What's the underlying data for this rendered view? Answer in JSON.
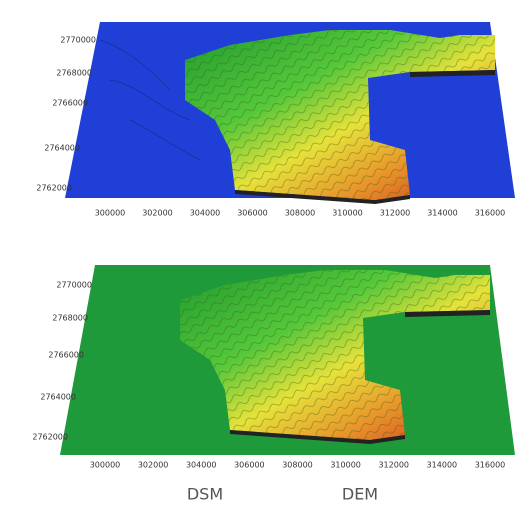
{
  "panels": [
    {
      "y_labels": [
        "2770000",
        "2768000",
        "2766000",
        "2764000",
        "2762000"
      ],
      "x_labels": [
        "300000",
        "302000",
        "304000",
        "306000",
        "308000",
        "310000",
        "312000",
        "314000",
        "316000"
      ]
    },
    {
      "y_labels": [
        "2770000",
        "2768000",
        "2766000",
        "2764000",
        "2762000"
      ],
      "x_labels": [
        "300000",
        "302000",
        "304000",
        "306000",
        "308000",
        "310000",
        "312000",
        "314000",
        "316000"
      ]
    }
  ],
  "captions": [
    "DSM",
    "DEM"
  ]
}
